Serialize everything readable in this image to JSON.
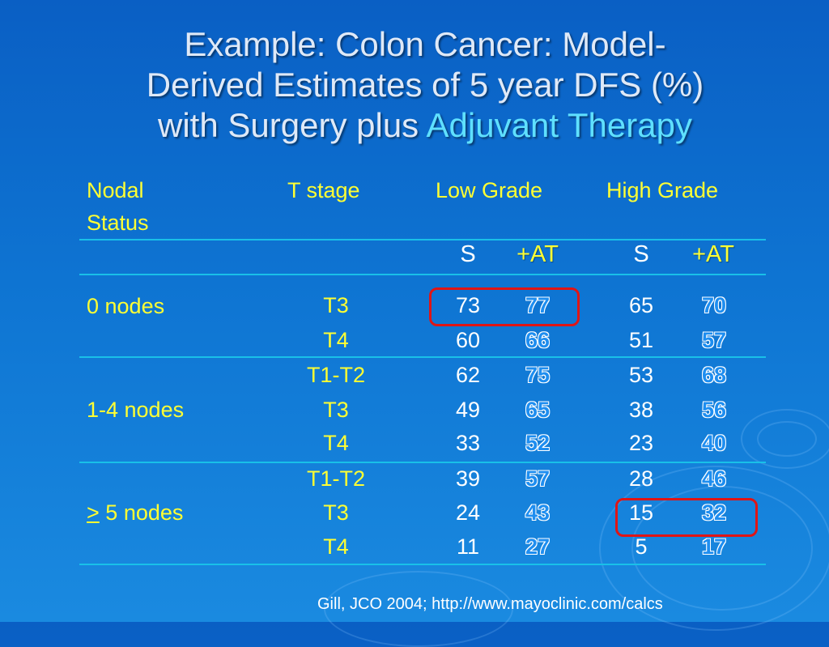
{
  "title": {
    "line1": "Example:  Colon Cancer:  Model-",
    "line2": "Derived Estimates of 5 year DFS (%)",
    "line3_with": "with",
    "line3_surgery": "Surgery",
    "line3_plus": "plus",
    "line3_adjuvant": "Adjuvant Therapy"
  },
  "headers": {
    "nodal_1": "Nodal",
    "nodal_2": "Status",
    "t_stage": "T stage",
    "low_grade": "Low Grade",
    "high_grade": "High Grade"
  },
  "subheaders": {
    "s": "S",
    "at": "+AT"
  },
  "groups": [
    "0 nodes",
    "1-4 nodes",
    "5 nodes"
  ],
  "group_prefix_ge": ">",
  "rows": [
    {
      "t": "T3",
      "low_s": "73",
      "low_at": "77",
      "high_s": "65",
      "high_at": "70"
    },
    {
      "t": "T4",
      "low_s": "60",
      "low_at": "66",
      "high_s": "51",
      "high_at": "57"
    },
    {
      "t": "T1-T2",
      "low_s": "62",
      "low_at": "75",
      "high_s": "53",
      "high_at": "68"
    },
    {
      "t": "T3",
      "low_s": "49",
      "low_at": "65",
      "high_s": "38",
      "high_at": "56"
    },
    {
      "t": "T4",
      "low_s": "33",
      "low_at": "52",
      "high_s": "23",
      "high_at": "40"
    },
    {
      "t": "T1-T2",
      "low_s": "39",
      "low_at": "57",
      "high_s": "28",
      "high_at": "46"
    },
    {
      "t": "T3",
      "low_s": "24",
      "low_at": "43",
      "high_s": "15",
      "high_at": "32"
    },
    {
      "t": "T4",
      "low_s": "11",
      "low_at": "27",
      "high_s": "5",
      "high_at": "17"
    }
  ],
  "source": "Gill, JCO 2004; http://www.mayoclinic.com/calcs",
  "colors": {
    "header_text": "#ffff33",
    "highlight_box": "#e01515",
    "rule": "#19c0e8",
    "adjuvant": "#5fe0ff"
  }
}
